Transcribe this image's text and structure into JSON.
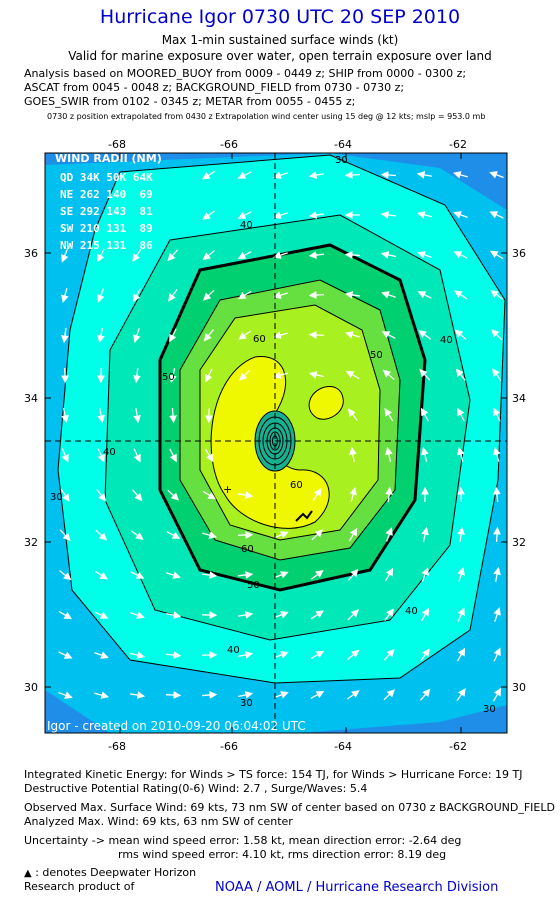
{
  "header": {
    "title": "Hurricane Igor 0730 UTC 20 SEP 2010",
    "subtitle1": "Max 1-min sustained surface winds (kt)",
    "subtitle2": "Valid for marine exposure over water, open terrain exposure over land",
    "analysis_lines": [
      "Analysis based on MOORED_BUOY from 0009 - 0449 z; SHIP from 0000 - 0300 z;",
      "ASCAT from 0045 - 0048 z; BACKGROUND_FIELD from 0730 - 0730 z;",
      "GOES_SWIR from 0102 - 0345 z; METAR from 0055 - 0455 z;"
    ],
    "position_note": "0730 z position extrapolated from 0430 z Extrapolation wind center using 15 deg @ 12 kts; mslp = 953.0 mb"
  },
  "map": {
    "lon_ticks": [
      "-68",
      "-66",
      "-64",
      "-62"
    ],
    "lat_ticks": [
      "36",
      "34",
      "32",
      "30"
    ],
    "wind_radii": {
      "title": "WIND RADII (NM)",
      "header": "QD 34K 50K 64K",
      "rows": [
        "NE 262 140  69",
        "SE 292 143  81",
        "SW 210 131  89",
        "NW 215 131  86"
      ]
    },
    "contour_labels": [
      "30",
      "40",
      "50",
      "60"
    ],
    "credit": "Igor - created on 2010-09-20 06:04:02 UTC",
    "colors": {
      "c20": "#1e8ee8",
      "c30": "#00c0f0",
      "c40": "#00ffe8",
      "c45": "#00e8b8",
      "c50": "#00d070",
      "c55": "#66e040",
      "c60": "#a8f020",
      "c65": "#f0f800",
      "core": "#18b090",
      "arrows": "#ffffff"
    }
  },
  "footer": {
    "lines": [
      "Integrated Kinetic Energy:  for Winds > TS force: 154 TJ,  for Winds > Hurricane Force: 19 TJ",
      "Destructive Potential Rating(0-6)   Wind: 2.7 , Surge/Waves: 5.4",
      "Observed Max. Surface Wind: 69 kts, 73 nm SW of center based on 0730 z BACKGROUND_FIELD",
      "Analyzed Max. Wind: 69 kts, 63 nm SW of center",
      "Uncertainty -> mean wind speed error: 1.58 kt,   mean direction error:  -2.64 deg",
      "rms wind speed error: 4.10 kt,   rms direction error: 8.19 deg"
    ],
    "deep_water_note": ": denotes Deepwater Horizon",
    "research_label": "Research product of",
    "org": "NOAA / AOML / Hurricane Research Division"
  }
}
